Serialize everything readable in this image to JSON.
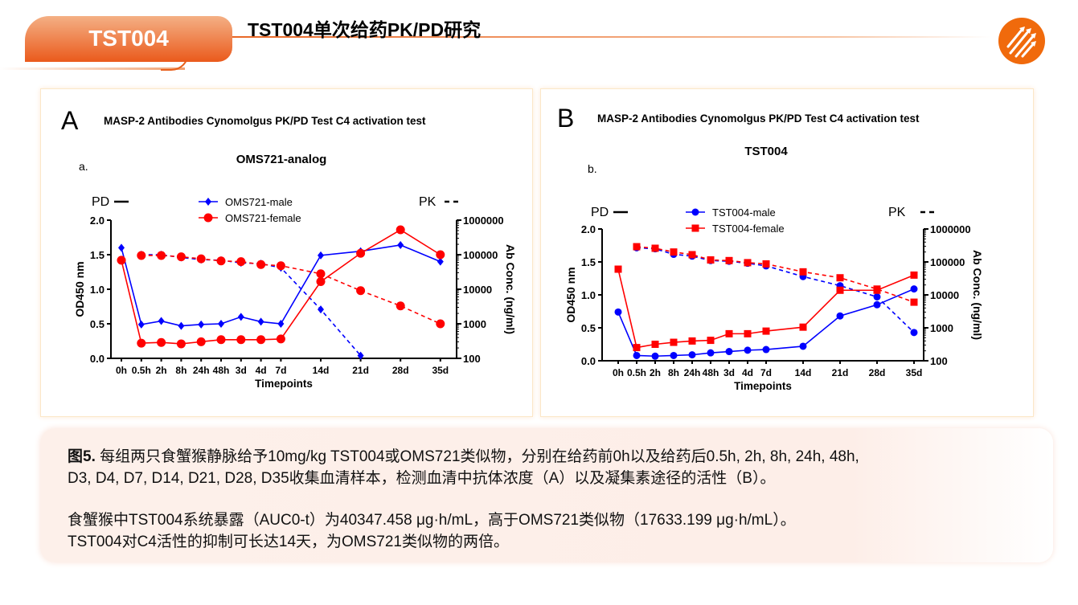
{
  "header": {
    "tab_label": "TST004",
    "title": "TST004单次给药PK/PD研究",
    "brand_color": "#f06a0c"
  },
  "logo": {
    "icon": "arrows-globe-logo"
  },
  "charts_common": {
    "x_categories": [
      "0h",
      "0.5h",
      "2h",
      "8h",
      "24h",
      "48h",
      "3d",
      "4d",
      "7d",
      "14d",
      "21d",
      "28d",
      "35d"
    ]
  },
  "chart_data": [
    {
      "type": "line",
      "panel_letter": "A",
      "header": "MASP-2 Antibodies Cynomolgus PK/PD Test C4 activation test",
      "title": "OMS721-analog",
      "sub_label": "a.",
      "xlabel": "Timepoints",
      "ylabel": "OD450 nm",
      "y2label": "Ab Conc. (ng/ml)",
      "categories": [
        "0h",
        "0.5h",
        "2h",
        "8h",
        "24h",
        "48h",
        "3d",
        "4d",
        "7d",
        "14d",
        "21d",
        "28d",
        "35d"
      ],
      "ylim": [
        0,
        2.0
      ],
      "yticks": [
        "0.0",
        "0.5",
        "1.0",
        "1.5",
        "2.0"
      ],
      "y2lim": [
        100,
        1000000
      ],
      "y2scale": "log",
      "y2ticks": [
        "100",
        "1000",
        "10000",
        "100000",
        "1000000"
      ],
      "pd_label": "PD",
      "pk_label": "PK",
      "series": [
        {
          "name": "OMS721-male",
          "color": "#0000ff",
          "marker": "diamond",
          "pd": [
            1.6,
            0.49,
            0.54,
            0.47,
            0.49,
            0.5,
            0.6,
            0.53,
            0.5,
            1.49,
            1.55,
            1.64,
            1.4
          ],
          "pk": [
            null,
            100000,
            100000,
            83000,
            72000,
            69000,
            58000,
            55000,
            42000,
            2600,
            120,
            null,
            null
          ]
        },
        {
          "name": "OMS721-female",
          "color": "#ff0000",
          "marker": "circle",
          "pd": [
            1.42,
            0.22,
            0.23,
            0.21,
            0.24,
            0.27,
            0.27,
            0.27,
            0.28,
            1.11,
            1.52,
            1.86,
            1.5
          ],
          "pk": [
            null,
            95000,
            95000,
            87000,
            76000,
            66000,
            63000,
            52000,
            48000,
            28000,
            9100,
            3300,
            1000
          ]
        }
      ]
    },
    {
      "type": "line",
      "panel_letter": "B",
      "header": "MASP-2 Antibodies Cynomolgus PK/PD Test C4 activation test",
      "title": "TST004",
      "sub_label": "b.",
      "xlabel": "Timepoints",
      "ylabel": "OD450 nm",
      "y2label": "Ab Conc. (ng/ml)",
      "categories": [
        "0h",
        "0.5h",
        "2h",
        "8h",
        "24h",
        "48h",
        "3d",
        "4d",
        "7d",
        "14d",
        "21d",
        "28d",
        "35d"
      ],
      "ylim": [
        0,
        2.0
      ],
      "yticks": [
        "0.0",
        "0.5",
        "1.0",
        "1.5",
        "2.0"
      ],
      "y2lim": [
        100,
        1000000
      ],
      "y2scale": "log",
      "y2ticks": [
        "100",
        "1000",
        "10000",
        "100000",
        "1000000"
      ],
      "pd_label": "PD",
      "pk_label": "PK",
      "series": [
        {
          "name": "TST004-male",
          "color": "#0000ff",
          "marker": "circle",
          "pd": [
            0.74,
            0.08,
            0.07,
            0.08,
            0.09,
            0.12,
            0.14,
            0.16,
            0.17,
            0.22,
            0.68,
            0.85,
            1.09
          ],
          "pk": [
            null,
            270000,
            250000,
            170000,
            150000,
            110000,
            105000,
            91000,
            76000,
            36000,
            19000,
            8700,
            720
          ]
        },
        {
          "name": "TST004-female",
          "color": "#ff0000",
          "marker": "square",
          "pd": [
            1.39,
            0.2,
            0.25,
            0.28,
            0.3,
            0.31,
            0.41,
            0.41,
            0.45,
            0.51,
            1.07,
            1.07,
            1.3
          ],
          "pk": [
            null,
            290000,
            260000,
            200000,
            166000,
            115000,
            110000,
            95000,
            87000,
            50000,
            33000,
            15000,
            6000
          ]
        }
      ]
    }
  ],
  "caption": {
    "fig_label": "图5.",
    "line1": " 每组两只食蟹猴静脉给予10mg/kg TST004或OMS721类似物，分别在给药前0h以及给药后0.5h, 2h, 8h, 24h, 48h,",
    "line2": "D3, D4, D7, D14, D21, D28, D35收集血清样本，检测血清中抗体浓度（A）以及凝集素途径的活性（B）。",
    "line3": "食蟹猴中TST004系统暴露（AUC0-t）为40347.458 μg·h/mL，高于OMS721类似物（17633.199 μg·h/mL）。",
    "line4": "TST004对C4活性的抑制可长达14天，为OMS721类似物的两倍。"
  }
}
